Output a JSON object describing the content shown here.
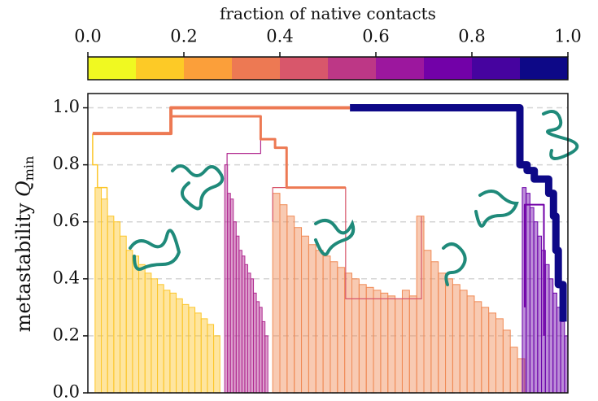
{
  "chart_data": {
    "type": "dendrogram",
    "colorbar": {
      "label": "fraction of native contacts",
      "lim": [
        0,
        1
      ],
      "colors": [
        "#f0f921",
        "#fdca26",
        "#fb9f3a",
        "#ed7953",
        "#d8576b",
        "#bd3786",
        "#9c179e",
        "#7201a8",
        "#46039f",
        "#0d0887"
      ],
      "ticks": [
        {
          "value": 0,
          "label": "0.0"
        },
        {
          "value": 0.2,
          "label": "0.2"
        },
        {
          "value": 0.4,
          "label": "0.4"
        },
        {
          "value": 0.6,
          "label": "0.6"
        },
        {
          "value": 0.8,
          "label": "0.8"
        },
        {
          "value": 1,
          "label": "1.0"
        }
      ]
    },
    "ylabel": "metastability",
    "ylabel_symbol": "Q",
    "ylabel_subscript": "min",
    "xlim": [
      0,
      100
    ],
    "ylim": [
      0,
      1.05
    ],
    "yticks": [
      {
        "value": 0,
        "label": "0.0"
      },
      {
        "value": 0.2,
        "label": "0.2"
      },
      {
        "value": 0.4,
        "label": "0.4"
      },
      {
        "value": 0.6,
        "label": "0.6"
      },
      {
        "value": 0.8,
        "label": "0.8"
      },
      {
        "value": 1,
        "label": "1.0"
      }
    ],
    "grid": true,
    "groups": [
      {
        "color": "#fcc62a",
        "x": [
          1.5,
          2.8,
          4.1,
          5.4,
          6.7,
          8,
          9.3,
          10.6,
          11.9,
          13.2,
          14.5,
          15.8,
          17.1,
          18.4,
          19.7,
          21,
          22.3,
          23.6,
          24.9,
          26.2
        ],
        "values": [
          0.72,
          0.68,
          0.62,
          0.6,
          0.55,
          0.5,
          0.48,
          0.45,
          0.42,
          0.4,
          0.38,
          0.36,
          0.35,
          0.33,
          0.31,
          0.3,
          0.28,
          0.26,
          0.24,
          0.2
        ]
      },
      {
        "color": "#b12a90",
        "x": [
          28.5,
          29.1,
          29.7,
          30.3,
          30.9,
          31.5,
          32.1,
          32.7,
          33.3,
          33.9,
          34.5,
          35.1,
          35.7,
          36.3,
          36.9
        ],
        "values": [
          0.8,
          0.7,
          0.68,
          0.6,
          0.55,
          0.5,
          0.48,
          0.45,
          0.42,
          0.4,
          0.35,
          0.32,
          0.3,
          0.25,
          0.2
        ]
      },
      {
        "color": "#f08a55",
        "x": [
          38.5,
          40,
          41.5,
          43,
          44.5,
          46,
          47.5,
          49,
          50.5,
          52,
          53.5,
          55,
          56.5,
          58,
          59.5,
          61,
          62.5,
          64,
          65.5,
          67,
          68.5,
          70,
          71.5,
          73,
          74.5,
          76,
          77.5,
          79,
          80.5,
          82,
          83.5,
          85,
          86.5,
          88,
          89.5
        ],
        "values": [
          0.7,
          0.66,
          0.62,
          0.58,
          0.55,
          0.52,
          0.5,
          0.48,
          0.46,
          0.44,
          0.42,
          0.4,
          0.38,
          0.37,
          0.36,
          0.35,
          0.34,
          0.33,
          0.36,
          0.34,
          0.62,
          0.5,
          0.46,
          0.42,
          0.4,
          0.38,
          0.36,
          0.34,
          0.32,
          0.3,
          0.28,
          0.26,
          0.22,
          0.16,
          0.12
        ]
      },
      {
        "color": "#6a00a8",
        "x": [
          90.5,
          91.3,
          92.1,
          92.9,
          93.7,
          94.5,
          95.3,
          96.1,
          96.9,
          97.7,
          98.5,
          99.3
        ],
        "values": [
          0.72,
          0.7,
          0.65,
          0.6,
          0.55,
          0.5,
          0.45,
          0.4,
          0.35,
          0.3,
          0.25,
          0.2
        ]
      }
    ],
    "links": [
      {
        "color": "#fcc62a",
        "linewidth": 1.5,
        "x": [
          1,
          1,
          2,
          2,
          4,
          4
        ],
        "y": [
          0.91,
          0.8,
          0.8,
          0.72,
          0.72,
          0.68
        ]
      },
      {
        "color": "#b12a90",
        "linewidth": 1.2,
        "x": [
          29,
          29,
          36,
          36
        ],
        "y": [
          0.8,
          0.84,
          0.84,
          0.89
        ]
      },
      {
        "color": "#d8576b",
        "linewidth": 1.2,
        "x": [
          38.5,
          38.5,
          53.7,
          53.7,
          69.5,
          69.5
        ],
        "y": [
          0.6,
          0.72,
          0.72,
          0.33,
          0.33,
          0.62
        ]
      },
      {
        "color": "#ed7953",
        "linewidth": 4,
        "x": [
          1,
          17.3,
          17.3,
          54.6
        ],
        "y": [
          0.91,
          0.91,
          1.0,
          1.0
        ]
      },
      {
        "color": "#ed7953",
        "linewidth": 3,
        "x": [
          17.3,
          36,
          36,
          39,
          39,
          41.4,
          41.4,
          53.7
        ],
        "y": [
          0.97,
          0.97,
          0.89,
          0.89,
          0.86,
          0.86,
          0.72,
          0.72
        ]
      },
      {
        "color": "#0d0887",
        "linewidth": 9,
        "x": [
          54.6,
          90,
          90,
          91.5,
          91.5,
          93,
          93,
          96,
          96,
          97,
          97,
          97.5,
          97.5,
          98,
          98,
          99,
          99
        ],
        "y": [
          1.0,
          1.0,
          0.8,
          0.8,
          0.78,
          0.78,
          0.75,
          0.75,
          0.7,
          0.7,
          0.62,
          0.62,
          0.5,
          0.5,
          0.38,
          0.38,
          0.25
        ]
      },
      {
        "color": "#7201a8",
        "linewidth": 2,
        "x": [
          91,
          91,
          95,
          95
        ],
        "y": [
          0.3,
          0.66,
          0.66,
          0.2
        ]
      }
    ]
  }
}
